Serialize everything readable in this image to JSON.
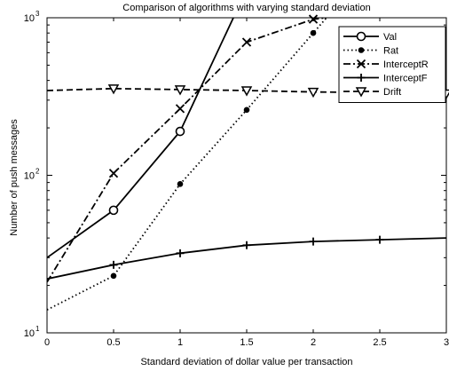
{
  "chart_data": {
    "type": "line",
    "title": "Comparison of algorithms with varying standard deviation",
    "xlabel": "Standard deviation of dollar value per transaction",
    "ylabel": "Number of push messages",
    "xlim": [
      0,
      3
    ],
    "ylim": [
      10,
      1000
    ],
    "yscale": "log",
    "grid": false,
    "legend_position": "top-right",
    "xticks": [
      0,
      0.5,
      1,
      1.5,
      2,
      2.5,
      3
    ],
    "xtick_labels": [
      "0",
      "0.5",
      "1",
      "1.5",
      "2",
      "2.5",
      "3"
    ],
    "yticks": [
      {
        "value": 10,
        "base": "10",
        "exp": "1"
      },
      {
        "value": 100,
        "base": "10",
        "exp": "2"
      },
      {
        "value": 1000,
        "base": "10",
        "exp": "3"
      }
    ],
    "series": [
      {
        "name": "Val",
        "style": "solid",
        "marker": "circle",
        "color": "#000000",
        "x": [
          0,
          0.5,
          1,
          1.4
        ],
        "y": [
          30,
          60,
          190,
          1000
        ],
        "marker_x": [
          0.5,
          1
        ]
      },
      {
        "name": "Rat",
        "style": "dotted",
        "marker": "dot",
        "color": "#000000",
        "x": [
          0,
          0.5,
          1,
          1.5,
          2,
          2.1
        ],
        "y": [
          14,
          23,
          88,
          260,
          800,
          1000
        ],
        "marker_x": [
          0.5,
          1,
          1.5,
          2
        ]
      },
      {
        "name": "InterceptR",
        "style": "dashdot",
        "marker": "x",
        "color": "#000000",
        "x": [
          0,
          0.5,
          1,
          1.5,
          2,
          2.1
        ],
        "y": [
          21,
          103,
          265,
          700,
          980,
          1000
        ],
        "marker_x": [
          0.5,
          1,
          1.5,
          2
        ]
      },
      {
        "name": "InterceptF",
        "style": "solid",
        "marker": "plus",
        "color": "#000000",
        "x": [
          0,
          0.5,
          1,
          1.5,
          2,
          2.5,
          3
        ],
        "y": [
          22,
          27,
          32,
          36,
          38,
          39,
          40
        ],
        "marker_x": [
          0.5,
          1,
          1.5,
          2,
          2.5
        ]
      },
      {
        "name": "Drift",
        "style": "dashed",
        "marker": "triangle-down",
        "color": "#000000",
        "x": [
          0,
          0.5,
          1,
          1.5,
          2,
          2.5,
          3
        ],
        "y": [
          345,
          355,
          350,
          345,
          338,
          335,
          330
        ],
        "marker_x": [
          0.5,
          1,
          1.5,
          2,
          3
        ]
      }
    ]
  }
}
